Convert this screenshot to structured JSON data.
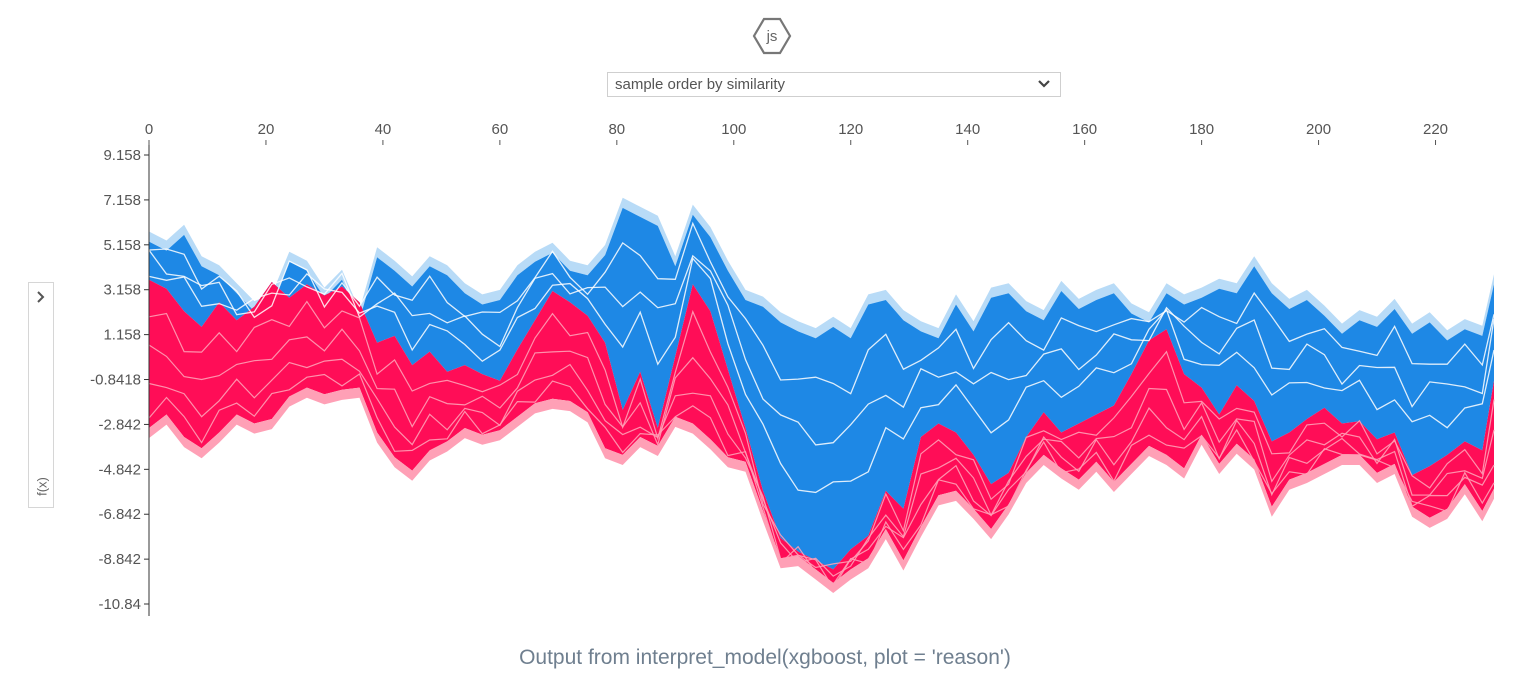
{
  "header": {
    "badge_icon": "js-hexagon-icon",
    "badge_text": "js",
    "order_select": {
      "value": "sample order by similarity"
    }
  },
  "side_panel": {
    "label": "f(x)",
    "toggle_icon": "chevron-right-icon"
  },
  "caption": "Output from interpret_model(xgboost, plot = 'reason')",
  "colors": {
    "red": "#ff0d57",
    "red_light": "#ffa0b6",
    "blue": "#1e88e5",
    "blue_light": "#b8dbf7",
    "separator": "#ffffff"
  },
  "chart_data": {
    "type": "area",
    "title": "",
    "xlabel": "",
    "ylabel": "f(x)",
    "xlim": [
      0,
      230
    ],
    "x_ticks": [
      0,
      20,
      40,
      60,
      80,
      100,
      120,
      140,
      160,
      180,
      200,
      220
    ],
    "y_ticks": [
      "9.158",
      "7.158",
      "5.158",
      "3.158",
      "1.158",
      "-0.8418",
      "-2.842",
      "-4.842",
      "-6.842",
      "-8.842",
      "-10.84"
    ],
    "y_tick_values": [
      9.158,
      7.158,
      5.158,
      3.158,
      1.158,
      -0.8418,
      -2.842,
      -4.842,
      -6.842,
      -8.842,
      -10.84
    ],
    "ylim": [
      -10.84,
      9.158
    ],
    "grid": false,
    "series": [
      {
        "key": "top",
        "points": [
          [
            0,
            5.3
          ],
          [
            3,
            4.9
          ],
          [
            6,
            5.6
          ],
          [
            9,
            4.2
          ],
          [
            12,
            3.8
          ],
          [
            15,
            3.0
          ],
          [
            18,
            2.2
          ],
          [
            21,
            2.5
          ],
          [
            24,
            4.4
          ],
          [
            27,
            4.0
          ],
          [
            30,
            2.8
          ],
          [
            33,
            3.6
          ],
          [
            36,
            1.8
          ],
          [
            39,
            4.6
          ],
          [
            42,
            4.0
          ],
          [
            45,
            3.3
          ],
          [
            48,
            4.2
          ],
          [
            51,
            3.8
          ],
          [
            54,
            3.0
          ],
          [
            57,
            2.5
          ],
          [
            60,
            2.7
          ],
          [
            63,
            3.8
          ],
          [
            66,
            4.4
          ],
          [
            69,
            4.8
          ],
          [
            72,
            4.0
          ],
          [
            75,
            3.8
          ],
          [
            78,
            4.7
          ],
          [
            81,
            6.8
          ],
          [
            84,
            6.4
          ],
          [
            87,
            6.0
          ],
          [
            90,
            4.2
          ],
          [
            93,
            6.5
          ],
          [
            96,
            5.5
          ],
          [
            99,
            4.0
          ],
          [
            102,
            2.7
          ],
          [
            105,
            2.4
          ],
          [
            108,
            1.7
          ],
          [
            111,
            1.3
          ],
          [
            114,
            1.0
          ],
          [
            117,
            1.5
          ],
          [
            120,
            1.0
          ],
          [
            123,
            2.5
          ],
          [
            126,
            2.7
          ],
          [
            129,
            1.8
          ],
          [
            132,
            1.3
          ],
          [
            135,
            1.0
          ],
          [
            138,
            2.5
          ],
          [
            141,
            1.3
          ],
          [
            144,
            2.8
          ],
          [
            147,
            3.0
          ],
          [
            150,
            2.2
          ],
          [
            153,
            1.8
          ],
          [
            156,
            3.1
          ],
          [
            159,
            2.3
          ],
          [
            162,
            2.7
          ],
          [
            165,
            3.0
          ],
          [
            168,
            2.1
          ],
          [
            171,
            1.7
          ],
          [
            174,
            3.0
          ],
          [
            177,
            2.5
          ],
          [
            180,
            2.8
          ],
          [
            183,
            3.2
          ],
          [
            186,
            3.0
          ],
          [
            189,
            4.2
          ],
          [
            192,
            3.0
          ],
          [
            195,
            2.3
          ],
          [
            198,
            2.7
          ],
          [
            201,
            2.0
          ],
          [
            204,
            1.2
          ],
          [
            207,
            1.8
          ],
          [
            210,
            1.5
          ],
          [
            213,
            2.3
          ],
          [
            216,
            1.2
          ],
          [
            219,
            1.7
          ],
          [
            222,
            0.9
          ],
          [
            225,
            1.4
          ],
          [
            228,
            1.1
          ],
          [
            230,
            3.4
          ]
        ]
      },
      {
        "key": "boundary",
        "points": [
          [
            0,
            3.6
          ],
          [
            3,
            3.2
          ],
          [
            6,
            2.2
          ],
          [
            9,
            1.5
          ],
          [
            12,
            2.6
          ],
          [
            15,
            1.8
          ],
          [
            18,
            2.4
          ],
          [
            21,
            3.5
          ],
          [
            24,
            2.8
          ],
          [
            27,
            3.4
          ],
          [
            30,
            2.9
          ],
          [
            33,
            3.3
          ],
          [
            36,
            2.6
          ],
          [
            39,
            0.8
          ],
          [
            42,
            1.1
          ],
          [
            45,
            -0.2
          ],
          [
            48,
            0.4
          ],
          [
            51,
            -0.5
          ],
          [
            54,
            -0.2
          ],
          [
            57,
            -0.6
          ],
          [
            60,
            -0.9
          ],
          [
            63,
            0.5
          ],
          [
            66,
            1.8
          ],
          [
            69,
            3.1
          ],
          [
            72,
            2.6
          ],
          [
            75,
            2.0
          ],
          [
            78,
            0.8
          ],
          [
            81,
            -2.2
          ],
          [
            84,
            -0.5
          ],
          [
            87,
            -3.0
          ],
          [
            90,
            0.2
          ],
          [
            93,
            3.4
          ],
          [
            96,
            2.2
          ],
          [
            99,
            -0.4
          ],
          [
            102,
            -3.0
          ],
          [
            105,
            -5.8
          ],
          [
            108,
            -7.9
          ],
          [
            111,
            -8.5
          ],
          [
            114,
            -8.9
          ],
          [
            117,
            -9.3
          ],
          [
            120,
            -8.4
          ],
          [
            123,
            -7.8
          ],
          [
            126,
            -5.8
          ],
          [
            129,
            -6.6
          ],
          [
            132,
            -3.4
          ],
          [
            135,
            -2.8
          ],
          [
            138,
            -3.2
          ],
          [
            141,
            -4.2
          ],
          [
            144,
            -5.5
          ],
          [
            147,
            -5.0
          ],
          [
            150,
            -3.4
          ],
          [
            153,
            -2.3
          ],
          [
            156,
            -3.2
          ],
          [
            159,
            -2.8
          ],
          [
            162,
            -2.4
          ],
          [
            165,
            -2.0
          ],
          [
            168,
            -0.6
          ],
          [
            171,
            0.9
          ],
          [
            174,
            1.4
          ],
          [
            177,
            -0.6
          ],
          [
            180,
            -1.2
          ],
          [
            183,
            -2.4
          ],
          [
            186,
            -1.1
          ],
          [
            189,
            -1.8
          ],
          [
            192,
            -3.6
          ],
          [
            195,
            -3.2
          ],
          [
            198,
            -2.6
          ],
          [
            201,
            -2.1
          ],
          [
            204,
            -2.8
          ],
          [
            207,
            -2.7
          ],
          [
            210,
            -3.5
          ],
          [
            213,
            -3.2
          ],
          [
            216,
            -5.1
          ],
          [
            219,
            -4.7
          ],
          [
            222,
            -4.2
          ],
          [
            225,
            -3.6
          ],
          [
            228,
            -4.0
          ],
          [
            230,
            -0.9
          ]
        ]
      },
      {
        "key": "bottom",
        "points": [
          [
            0,
            -3.0
          ],
          [
            3,
            -2.4
          ],
          [
            6,
            -3.4
          ],
          [
            9,
            -3.9
          ],
          [
            12,
            -3.2
          ],
          [
            15,
            -2.4
          ],
          [
            18,
            -2.8
          ],
          [
            21,
            -2.6
          ],
          [
            24,
            -1.6
          ],
          [
            27,
            -1.2
          ],
          [
            30,
            -1.5
          ],
          [
            33,
            -1.3
          ],
          [
            36,
            -1.2
          ],
          [
            39,
            -3.2
          ],
          [
            42,
            -4.3
          ],
          [
            45,
            -4.9
          ],
          [
            48,
            -4.0
          ],
          [
            51,
            -3.6
          ],
          [
            54,
            -3.0
          ],
          [
            57,
            -3.3
          ],
          [
            60,
            -3.1
          ],
          [
            63,
            -2.5
          ],
          [
            66,
            -1.9
          ],
          [
            69,
            -1.7
          ],
          [
            72,
            -1.8
          ],
          [
            75,
            -2.3
          ],
          [
            78,
            -3.9
          ],
          [
            81,
            -4.2
          ],
          [
            84,
            -3.4
          ],
          [
            87,
            -3.8
          ],
          [
            90,
            -2.5
          ],
          [
            93,
            -2.8
          ],
          [
            96,
            -3.5
          ],
          [
            99,
            -4.3
          ],
          [
            102,
            -4.5
          ],
          [
            105,
            -6.7
          ],
          [
            108,
            -8.8
          ],
          [
            111,
            -8.7
          ],
          [
            114,
            -9.3
          ],
          [
            117,
            -9.9
          ],
          [
            120,
            -9.3
          ],
          [
            123,
            -8.8
          ],
          [
            126,
            -7.5
          ],
          [
            129,
            -8.9
          ],
          [
            132,
            -7.4
          ],
          [
            135,
            -6.0
          ],
          [
            138,
            -5.8
          ],
          [
            141,
            -6.6
          ],
          [
            144,
            -7.5
          ],
          [
            147,
            -6.4
          ],
          [
            150,
            -5.0
          ],
          [
            153,
            -4.2
          ],
          [
            156,
            -4.8
          ],
          [
            159,
            -5.3
          ],
          [
            162,
            -4.5
          ],
          [
            165,
            -5.4
          ],
          [
            168,
            -4.6
          ],
          [
            171,
            -3.8
          ],
          [
            174,
            -4.2
          ],
          [
            177,
            -4.8
          ],
          [
            180,
            -3.3
          ],
          [
            183,
            -4.6
          ],
          [
            186,
            -3.7
          ],
          [
            189,
            -4.4
          ],
          [
            192,
            -6.5
          ],
          [
            195,
            -5.3
          ],
          [
            198,
            -5.0
          ],
          [
            201,
            -4.6
          ],
          [
            204,
            -4.2
          ],
          [
            207,
            -4.2
          ],
          [
            210,
            -5.0
          ],
          [
            213,
            -4.6
          ],
          [
            216,
            -6.5
          ],
          [
            219,
            -7.0
          ],
          [
            222,
            -6.6
          ],
          [
            225,
            -5.5
          ],
          [
            228,
            -6.7
          ],
          [
            230,
            -5.7
          ]
        ]
      }
    ]
  }
}
